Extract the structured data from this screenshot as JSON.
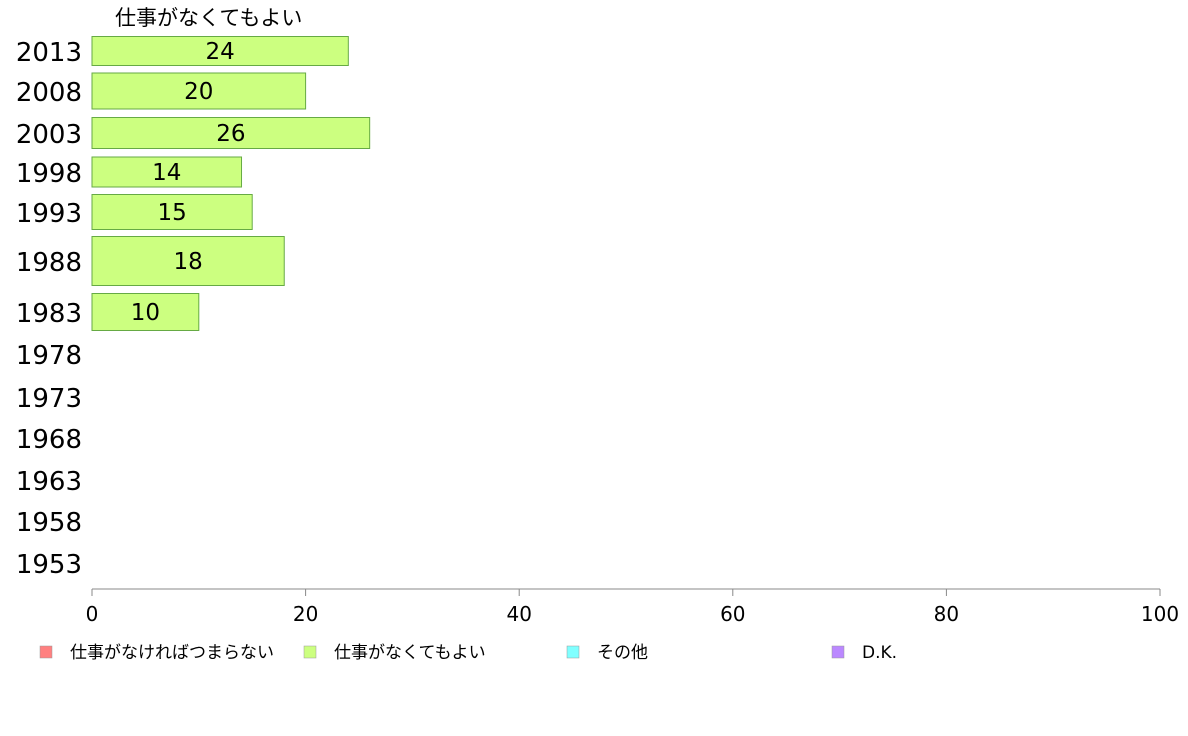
{
  "chart_data": {
    "type": "bar",
    "orientation": "horizontal",
    "stacked": true,
    "title": "",
    "series_title": "仕事がなくてもよい",
    "categories": [
      "2013",
      "2008",
      "2003",
      "1998",
      "1993",
      "1988",
      "1983",
      "1978",
      "1973",
      "1968",
      "1963",
      "1958",
      "1953"
    ],
    "series": [
      {
        "name": "仕事がなければつまらない",
        "color": "#ff8080",
        "values": [
          null,
          null,
          null,
          null,
          null,
          null,
          null,
          null,
          null,
          null,
          null,
          null,
          null
        ]
      },
      {
        "name": "仕事がなくてもよい",
        "color": "#ccff80",
        "values": [
          24,
          20,
          26,
          14,
          15,
          18,
          10,
          null,
          null,
          null,
          null,
          null,
          null
        ]
      },
      {
        "name": "その他",
        "color": "#80ffff",
        "values": [
          null,
          null,
          null,
          null,
          null,
          null,
          null,
          null,
          null,
          null,
          null,
          null,
          null
        ]
      },
      {
        "name": "D.K.",
        "color": "#bb88ff",
        "values": [
          null,
          null,
          null,
          null,
          null,
          null,
          null,
          null,
          null,
          null,
          null,
          null,
          null
        ]
      }
    ],
    "xlim": [
      0,
      100
    ],
    "xticks": [
      0,
      20,
      40,
      60,
      80,
      100
    ],
    "xlabel": "",
    "ylabel": "",
    "grid": false,
    "legend_position": "bottom",
    "bar_border_color": "#66aa44"
  }
}
